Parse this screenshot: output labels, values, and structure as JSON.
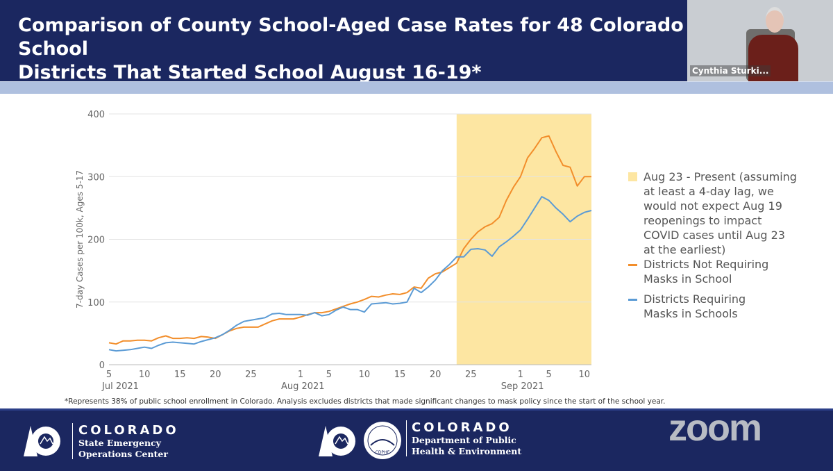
{
  "slide": {
    "title": "Comparison of County School-Aged Case Rates for 48 Colorado School\nDistricts That Started School August 16-19*",
    "footnote": "*Represents 38% of public school enrollment in Colorado. Analysis excludes districts that made significant changes to mask policy since the start of the school year."
  },
  "video": {
    "participant_name": "Cynthia Sturki..."
  },
  "footer": {
    "org1": {
      "name": "COLORADO",
      "line1": "State Emergency",
      "line2": "Operations Center"
    },
    "org2": {
      "name": "COLORADO",
      "line1": "Department of Public",
      "line2": "Health & Environment",
      "seal_text": "CDPHE"
    },
    "watermark": "zoom"
  },
  "colors": {
    "orange": "#f28e2b",
    "blue": "#5b9bd5",
    "shade": "#fde6a2",
    "navy": "#1b2760"
  },
  "chart_data": {
    "type": "line",
    "ylabel": "7-day Cases per 100k, Ages 5-17",
    "xlabel": "",
    "ylim": [
      0,
      400
    ],
    "yticks": [
      0,
      100,
      200,
      300,
      400
    ],
    "x_start": "2021-07-05",
    "x_end": "2021-09-11",
    "xticks": [
      {
        "date": "2021-07-05",
        "label": "5",
        "month": "Jul 2021"
      },
      {
        "date": "2021-07-10",
        "label": "10"
      },
      {
        "date": "2021-07-15",
        "label": "15"
      },
      {
        "date": "2021-07-20",
        "label": "20"
      },
      {
        "date": "2021-07-25",
        "label": "25"
      },
      {
        "date": "2021-08-01",
        "label": "1",
        "month": "Aug 2021"
      },
      {
        "date": "2021-08-05",
        "label": "5"
      },
      {
        "date": "2021-08-10",
        "label": "10"
      },
      {
        "date": "2021-08-15",
        "label": "15"
      },
      {
        "date": "2021-08-20",
        "label": "20"
      },
      {
        "date": "2021-08-25",
        "label": "25"
      },
      {
        "date": "2021-09-01",
        "label": "1",
        "month": "Sep 2021"
      },
      {
        "date": "2021-09-05",
        "label": "5"
      },
      {
        "date": "2021-09-10",
        "label": "10"
      }
    ],
    "grid": true,
    "legend_placement": "right",
    "shaded_region": {
      "start": "2021-08-23",
      "end": "2021-09-11",
      "label": "Aug 23 - Present (assuming at least a 4-day lag, we would not expect Aug 19 reopenings to impact COVID cases until Aug 23 at the earliest)"
    },
    "series": [
      {
        "name": "Districts Not Requiring Masks in School",
        "color": "#f28e2b",
        "values": [
          35,
          33,
          38,
          38,
          39,
          39,
          38,
          43,
          46,
          42,
          42,
          43,
          42,
          45,
          44,
          42,
          48,
          54,
          58,
          60,
          60,
          60,
          65,
          70,
          73,
          73,
          73,
          76,
          80,
          83,
          83,
          85,
          89,
          93,
          97,
          100,
          104,
          109,
          108,
          111,
          113,
          112,
          115,
          124,
          122,
          138,
          145,
          148,
          155,
          162,
          185,
          200,
          212,
          220,
          225,
          235,
          262,
          283,
          300,
          330,
          345,
          362,
          365,
          340,
          318,
          315,
          285,
          300,
          300
        ]
      },
      {
        "name": "Districts Requiring Masks in Schools",
        "color": "#5b9bd5",
        "values": [
          24,
          22,
          23,
          24,
          26,
          28,
          26,
          31,
          35,
          36,
          35,
          34,
          33,
          37,
          40,
          43,
          48,
          55,
          63,
          69,
          71,
          73,
          75,
          81,
          82,
          80,
          80,
          80,
          79,
          83,
          78,
          80,
          87,
          92,
          88,
          88,
          84,
          97,
          98,
          99,
          97,
          98,
          100,
          122,
          115,
          124,
          135,
          150,
          160,
          172,
          172,
          184,
          185,
          183,
          173,
          188,
          196,
          205,
          215,
          232,
          250,
          268,
          262,
          250,
          240,
          228,
          237,
          243,
          246
        ]
      }
    ]
  }
}
